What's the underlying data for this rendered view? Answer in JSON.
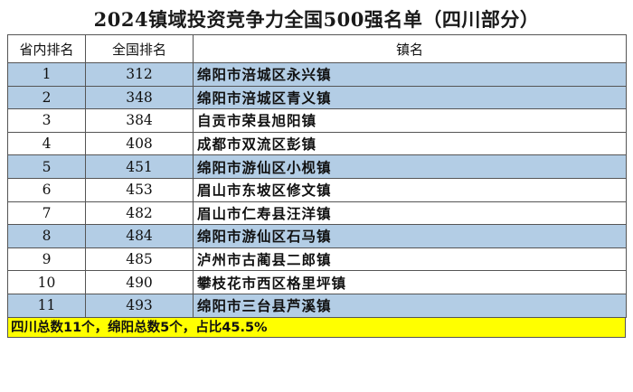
{
  "title": "2024镇域投资竞争力全国500强名单（四川部分）",
  "headers": {
    "province_rank": "省内排名",
    "national_rank": "全国排名",
    "town_name": "镇名"
  },
  "highlight_color": "#b3cde5",
  "footer_color": "#ffff00",
  "rows": [
    {
      "province_rank": "1",
      "national_rank": "312",
      "name": "绵阳市涪城区永兴镇",
      "highlight": true
    },
    {
      "province_rank": "2",
      "national_rank": "348",
      "name": "绵阳市涪城区青义镇",
      "highlight": true
    },
    {
      "province_rank": "3",
      "national_rank": "384",
      "name": "自贡市荣县旭阳镇",
      "highlight": false
    },
    {
      "province_rank": "4",
      "national_rank": "408",
      "name": "成都市双流区彭镇",
      "highlight": false
    },
    {
      "province_rank": "5",
      "national_rank": "451",
      "name": "绵阳市游仙区小枧镇",
      "highlight": true
    },
    {
      "province_rank": "6",
      "national_rank": "453",
      "name": "眉山市东坡区修文镇",
      "highlight": false
    },
    {
      "province_rank": "7",
      "national_rank": "482",
      "name": "眉山市仁寿县汪洋镇",
      "highlight": false
    },
    {
      "province_rank": "8",
      "national_rank": "484",
      "name": "绵阳市游仙区石马镇",
      "highlight": true
    },
    {
      "province_rank": "9",
      "national_rank": "485",
      "name": "泸州市古蔺县二郎镇",
      "highlight": false
    },
    {
      "province_rank": "10",
      "national_rank": "490",
      "name": "攀枝花市西区格里坪镇",
      "highlight": false
    },
    {
      "province_rank": "11",
      "national_rank": "493",
      "name": "绵阳市三台县芦溪镇",
      "highlight": true
    }
  ],
  "footer": "四川总数11个，绵阳总数5个，占比45.5%"
}
